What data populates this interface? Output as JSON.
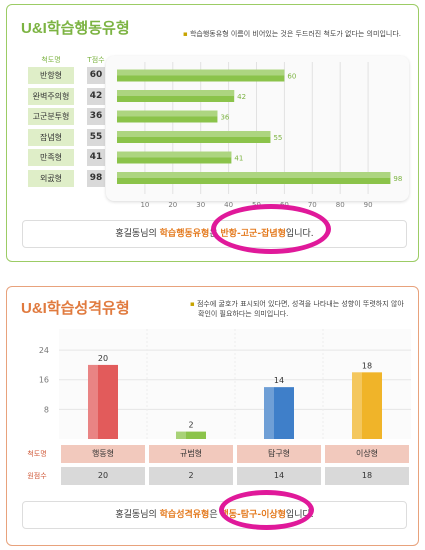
{
  "learning_behavior": {
    "title": "U&I학습행동유형",
    "note": "학습행동유형 이름이 비어있는 것은 두드러진 척도가 없다는 의미입니다.",
    "col_type": "척도명",
    "col_score": "T점수",
    "summary_pre": "홍길동님의 ",
    "summary_hl1": "학습행동유형",
    "summary_mid": "은 ",
    "summary_hl2": "반항-고군-잡념형",
    "summary_post": "입니다."
  },
  "learning_personality": {
    "title": "U&I학습성격유형",
    "note_line1": "점수에 굴호가 표시되어 있다면, 성격을 나타내는 성향이 뚜렷하지 않아",
    "note_line2": "확인이 필요하다는 의미입니다.",
    "row_type_label": "척도명",
    "row_score_label": "원점수",
    "summary_pre": "홍길동님의 ",
    "summary_hl1": "학습성격유형",
    "summary_mid": "은 ",
    "summary_hl2": "행동-탐구-이상형",
    "summary_post": "입니다."
  },
  "chart_data": [
    {
      "type": "bar",
      "orientation": "horizontal",
      "title": "U&I학습행동유형",
      "categories": [
        "반항형",
        "완벽주의형",
        "고군분투형",
        "잡념형",
        "만족형",
        "외곬형"
      ],
      "values": [
        60,
        42,
        36,
        55,
        41,
        98
      ],
      "xticks": [
        10,
        20,
        30,
        40,
        50,
        60,
        70,
        80,
        90
      ],
      "xlim": [
        0,
        100
      ],
      "colors": {
        "bar": "#8bc34a",
        "bar_light": "#c5e1a5"
      }
    },
    {
      "type": "bar",
      "title": "U&I학습성격유형",
      "categories": [
        "행동형",
        "규범형",
        "탐구형",
        "이상형"
      ],
      "values": [
        20,
        2,
        14,
        18
      ],
      "yticks": [
        8,
        16,
        24
      ],
      "ylim": [
        0,
        27
      ],
      "colors": [
        "#e25b5b",
        "#8bc34a",
        "#3f7fc9",
        "#f0b429"
      ]
    }
  ]
}
